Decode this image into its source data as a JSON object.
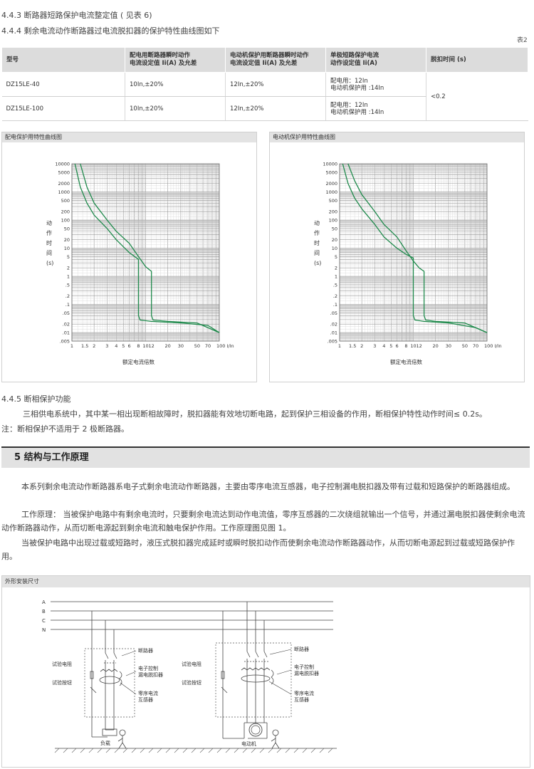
{
  "header": {
    "line1": "4.4.3 断路器短路保护电流整定值 ( 见表 6)",
    "line2": "4.4.4 剩余电流动作断路器过电流脱扣器的保护特性曲线图如下",
    "table_tag": "表2"
  },
  "spec_table": {
    "headers": [
      "型号",
      "配电用断路器瞬时动作\n电流设定值 Ii(A) 及允差",
      "电动机保护用断路器瞬时动作\n电流设定值 Ii(A) 及允差",
      "单极短路保护电流\n动作设定值 Ii(A)",
      "脱扣时间 (s)"
    ],
    "rows": [
      [
        "DZ15LE-40",
        "10In,±20%",
        "12In,±20%",
        "配电用：12In\n电动机保护用 :14In"
      ],
      [
        "DZ15LE-100",
        "10In,±20%",
        "12In,±20%",
        "配电用：12In\n电动机保护用 :14In"
      ]
    ],
    "trip_time": "<0.2"
  },
  "chart_data": [
    {
      "type": "line",
      "title": "配电保护用特性曲线图",
      "ylabel": "动\n作\n时\n间\n(s)",
      "xlabel": "额定电流倍数",
      "x_scale": "log",
      "y_scale": "log",
      "xlim": [
        1,
        100
      ],
      "ylim": [
        0.005,
        10000
      ],
      "x_ticks": [
        "1",
        "1.5",
        "2",
        "3",
        "4",
        "5",
        "6",
        "8",
        "10",
        "12",
        "20",
        "30",
        "50",
        "70",
        "100 I/In"
      ],
      "y_ticks": [
        "10000",
        "5000",
        "2000",
        "1000",
        "500",
        "200",
        "100",
        "50",
        "20",
        "10",
        "5",
        "2",
        "1",
        ".5",
        ".2",
        ".1",
        ".05",
        ".02",
        ".01",
        ".005"
      ],
      "series": [
        {
          "x": [
            1.1,
            1.3,
            1.6,
            2,
            3,
            4,
            6,
            8,
            8,
            8.4,
            12,
            30,
            70,
            100
          ],
          "y": [
            10000,
            1500,
            400,
            150,
            50,
            20,
            7,
            4,
            0.04,
            0.028,
            0.025,
            0.022,
            0.018,
            0.01
          ]
        },
        {
          "x": [
            1.3,
            1.6,
            2,
            3,
            4,
            6,
            8,
            10,
            12,
            12,
            12.6,
            20,
            50,
            100
          ],
          "y": [
            10000,
            1500,
            400,
            100,
            40,
            15,
            5,
            2.2,
            1.5,
            0.04,
            0.028,
            0.025,
            0.022,
            0.01
          ]
        }
      ]
    },
    {
      "type": "line",
      "title": "电动机保护用特性曲线图",
      "ylabel": "动\n作\n时\n间\n(s)",
      "xlabel": "额定电流倍数",
      "x_scale": "log",
      "y_scale": "log",
      "xlim": [
        1,
        100
      ],
      "ylim": [
        0.005,
        10000
      ],
      "x_ticks": [
        "1",
        "1.5",
        "2",
        "3",
        "4",
        "5",
        "6",
        "8",
        "10",
        "12",
        "20",
        "30",
        "50",
        "70",
        "100 I/In"
      ],
      "y_ticks": [
        "10000",
        "5000",
        "2000",
        "1000",
        "500",
        "200",
        "100",
        "50",
        "20",
        "10",
        "5",
        "2",
        "1",
        ".5",
        ".2",
        ".1",
        ".05",
        ".02",
        ".01",
        ".005"
      ],
      "series": [
        {
          "x": [
            1.1,
            1.3,
            1.6,
            2,
            3,
            4,
            6,
            8,
            10,
            10,
            10.5,
            14,
            30,
            70,
            100
          ],
          "y": [
            10000,
            2000,
            600,
            250,
            70,
            25,
            10,
            6,
            4.5,
            0.04,
            0.028,
            0.025,
            0.022,
            0.015,
            0.01
          ]
        },
        {
          "x": [
            1.3,
            1.6,
            2,
            3,
            4,
            6,
            8,
            10,
            12,
            14,
            14,
            14.7,
            20,
            50,
            100
          ],
          "y": [
            10000,
            2500,
            800,
            200,
            70,
            25,
            8,
            3.5,
            2.0,
            1.5,
            0.04,
            0.028,
            0.025,
            0.022,
            0.01
          ]
        }
      ]
    }
  ],
  "phase_section": {
    "title": "4.4.5 断相保护功能",
    "body": "三相供电系统中，其中某一相出现断相故障时，脱扣器能有效地切断电路，起到保护三相设备的作用，断相保护特性动作时间≤ 0.2s。",
    "note": "注：断相保护不适用于 2 极断路器。"
  },
  "section5": {
    "title": "5 结构与工作原理",
    "p1": "本系列剩余电流动作断路器系电子式剩余电流动作断路器，主要由零序电流互感器，电子控制漏电脱扣器及带有过载和短路保护的断路器组成。",
    "p2": "工作原理：  当被保护电路中有剩余电流时，只要剩余电流达到动作电流值，零序互感器的二次绕组就输出一个信号，并通过漏电脱扣器使剩余电流动作断路器动作，从而切断电源起到剩余电流和触电保护作用。工作原理图见图 1。",
    "p3": "当被保护电路中出现过载或短路时，液压式脱扣器完成延时或瞬时脱扣动作而使剩余电流动作断路器动作，从而切断电源起到过载或短路保护作用。"
  },
  "diagram": {
    "title": "外形安装尺寸",
    "bus_labels": [
      "A",
      "B",
      "C",
      "N"
    ],
    "left": {
      "breaker": "断路器",
      "ctrl1": "电子控制",
      "ctrl2": "漏电脱扣器",
      "ct1": "零序电流",
      "ct2": "互感器",
      "test_r": "试验电阻",
      "test_b": "试验按钮",
      "load": "负载"
    },
    "right": {
      "breaker": "断路器",
      "ctrl1": "电子控制",
      "ctrl2": "漏电脱扣器",
      "ct1": "零序电流",
      "ct2": "互感器",
      "test_r": "试验电阻",
      "test_b": "试验按钮",
      "motor": "电动机"
    }
  }
}
